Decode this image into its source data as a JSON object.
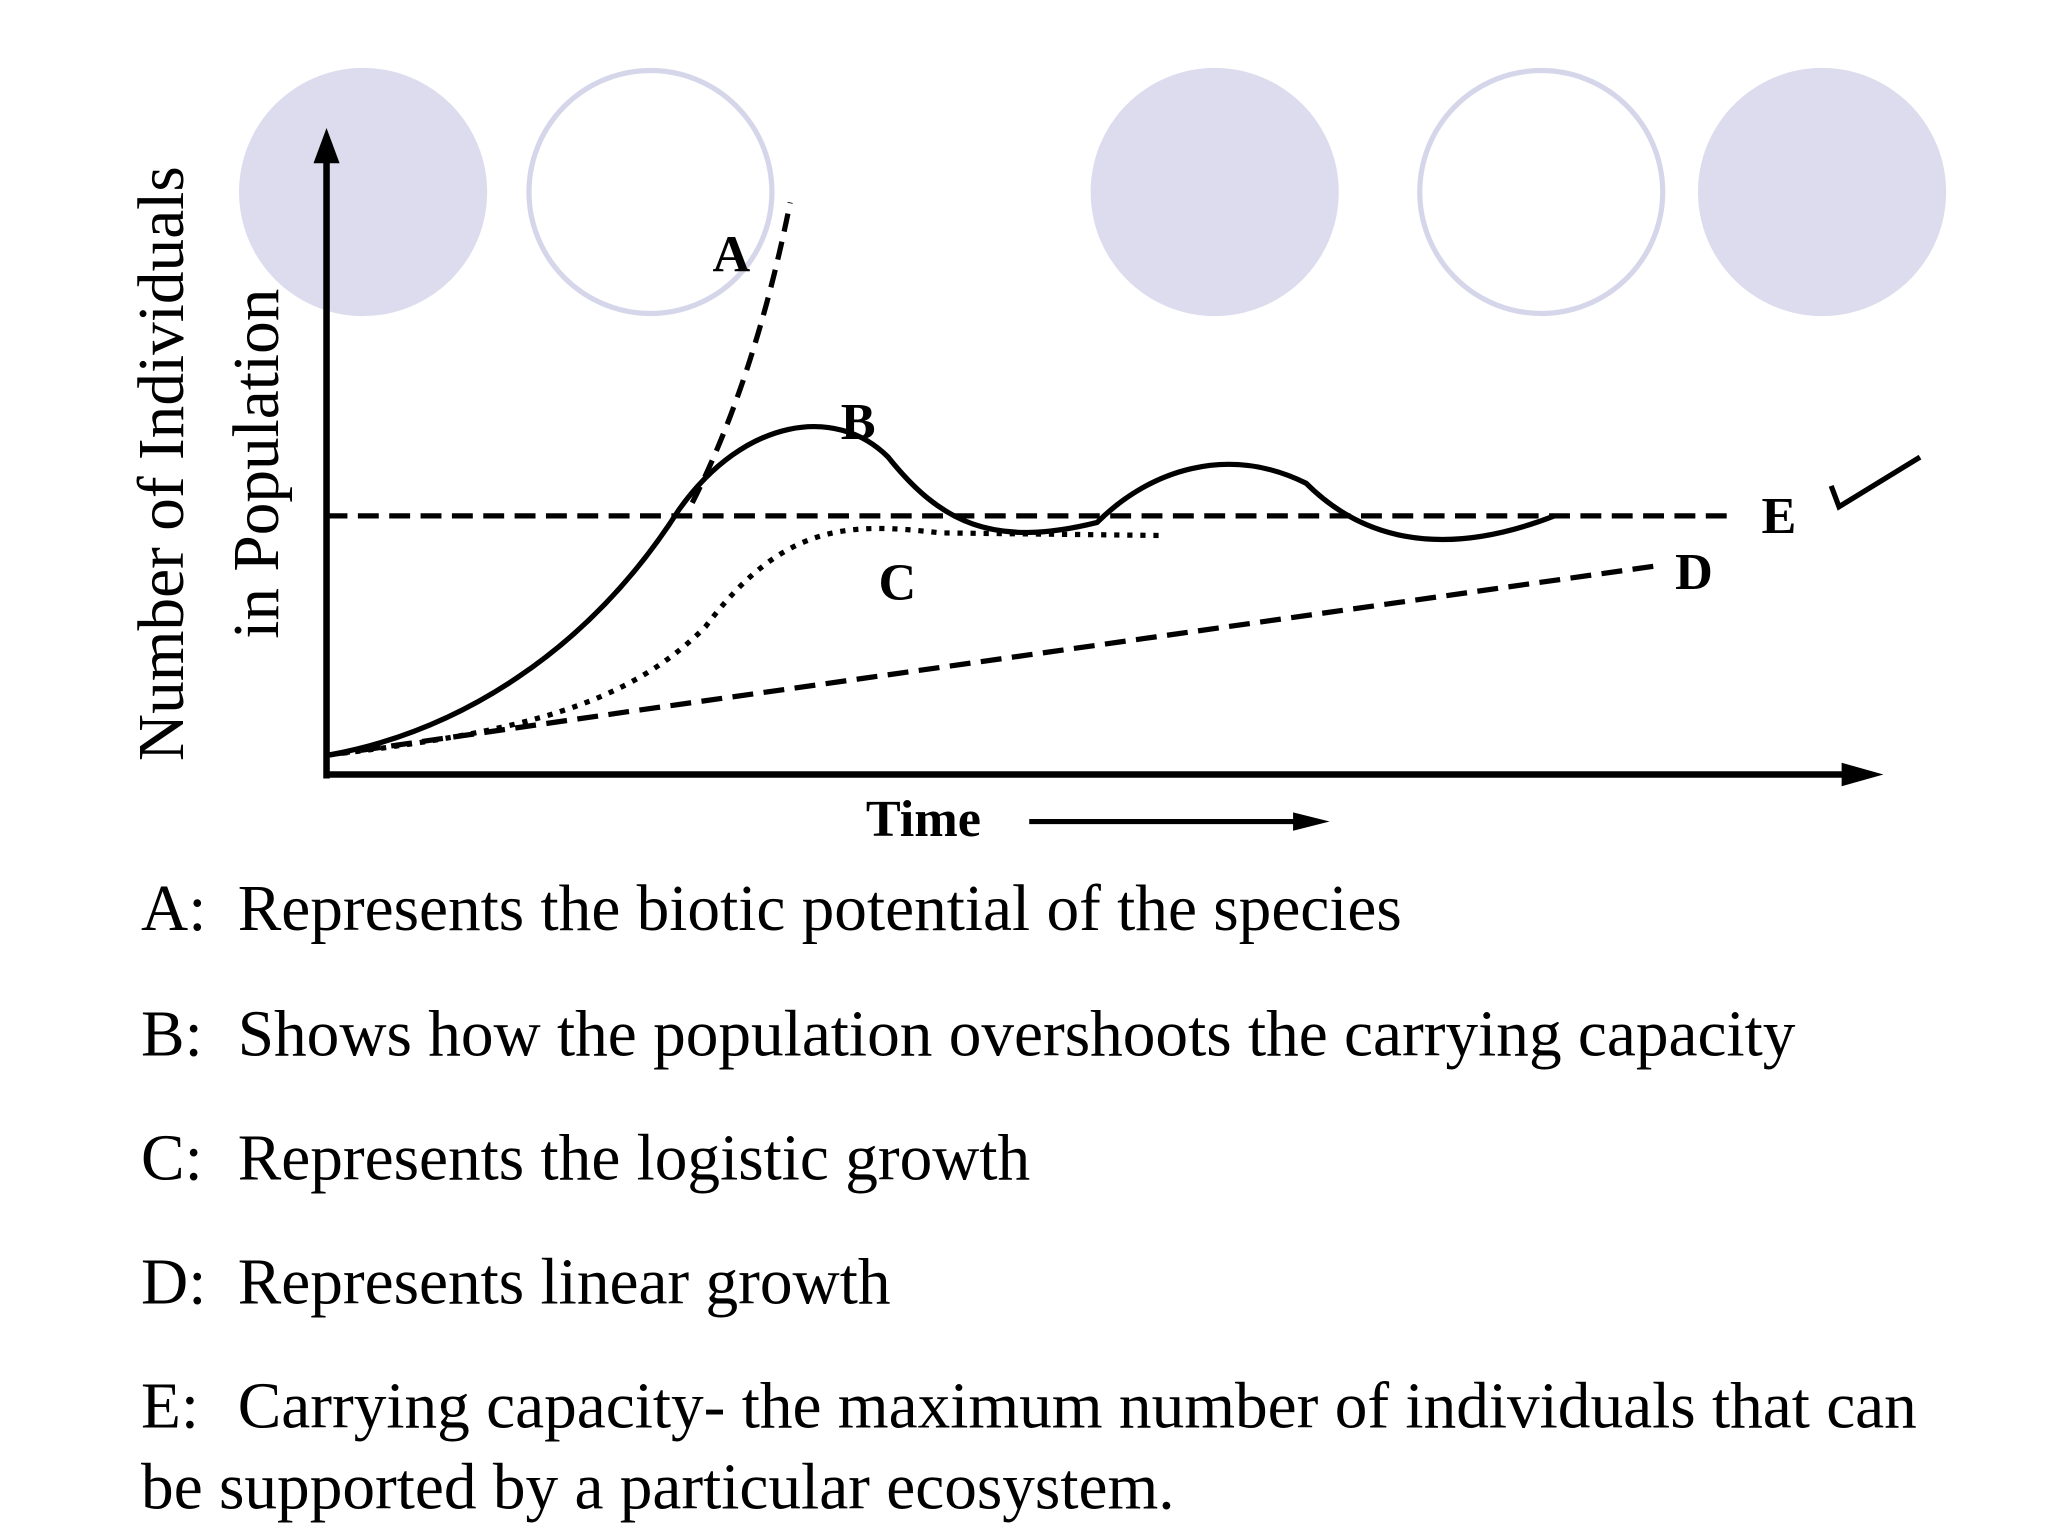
{
  "graph": {
    "y_axis_label": [
      "Number of Individuals",
      "in Population"
    ],
    "x_axis_label": "Time",
    "curve_labels": [
      "A",
      "B",
      "C",
      "D",
      "E"
    ]
  },
  "notes": [
    {
      "letter": "A:",
      "lines": [
        "Represents the biotic potential of the species"
      ]
    },
    {
      "letter": "B:",
      "lines": [
        "Shows how the population overshoots the carrying capacity"
      ]
    },
    {
      "letter": "C:",
      "lines": [
        "Represents the logistic growth"
      ]
    },
    {
      "letter": "D:",
      "lines": [
        "Represents linear growth"
      ]
    },
    {
      "letter": "E:",
      "lines": [
        "Carrying capacity- the maximum number of individuals that can",
        "be supported by a particular ecosystem."
      ]
    }
  ]
}
